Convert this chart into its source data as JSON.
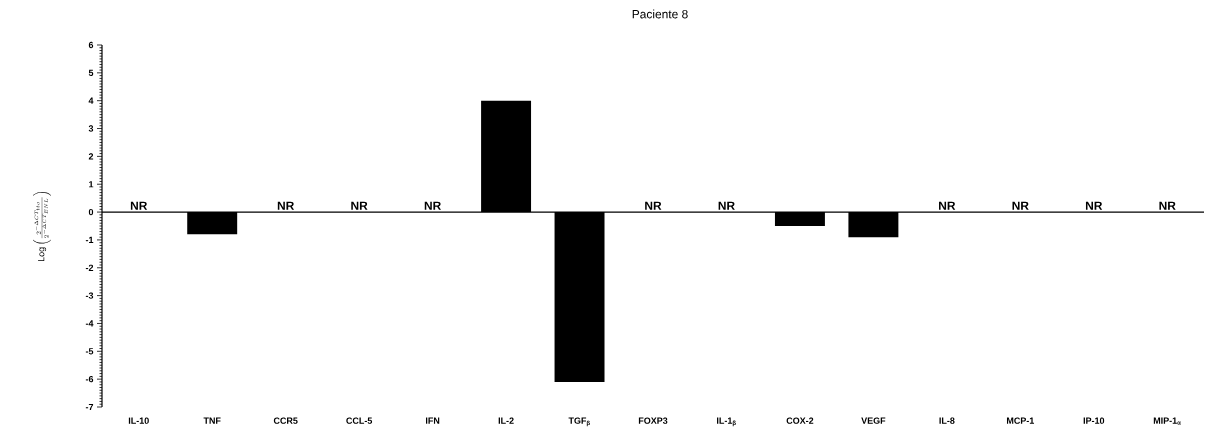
{
  "chart_data": {
    "type": "bar",
    "title": "Paciente 8",
    "ylabel": "\\mathrm{Log}\\left(\\frac{2^{-\\Delta CT_{tto}}}{2^{-\\Delta CT_{ENL}}}\\right)",
    "categories": [
      "IL-10",
      "TNF",
      "CCR5",
      "CCL-5",
      "IFN",
      "IL-2",
      "TGF$_{β}$",
      "FOXP3",
      "IL-1$_{β}$",
      "COX-2",
      "VEGF",
      "IL-8",
      "MCP-1",
      "IP-10",
      "MIP-1$_{α}$"
    ],
    "values": [
      null,
      -0.8,
      null,
      null,
      null,
      4.0,
      -6.1,
      null,
      null,
      -0.5,
      -0.9,
      null,
      null,
      null,
      null
    ],
    "color": "#000000",
    "ylim": [
      -7,
      6
    ],
    "yticks": [
      -7,
      -6,
      -5,
      -4,
      -3,
      -2,
      -1,
      0,
      1,
      2,
      3,
      4,
      5,
      6
    ],
    "annotations": [
      "NR",
      "NR",
      "NR",
      "NR",
      "NR",
      "NR",
      "NR",
      "NR",
      "NR",
      "NR"
    ]
  }
}
